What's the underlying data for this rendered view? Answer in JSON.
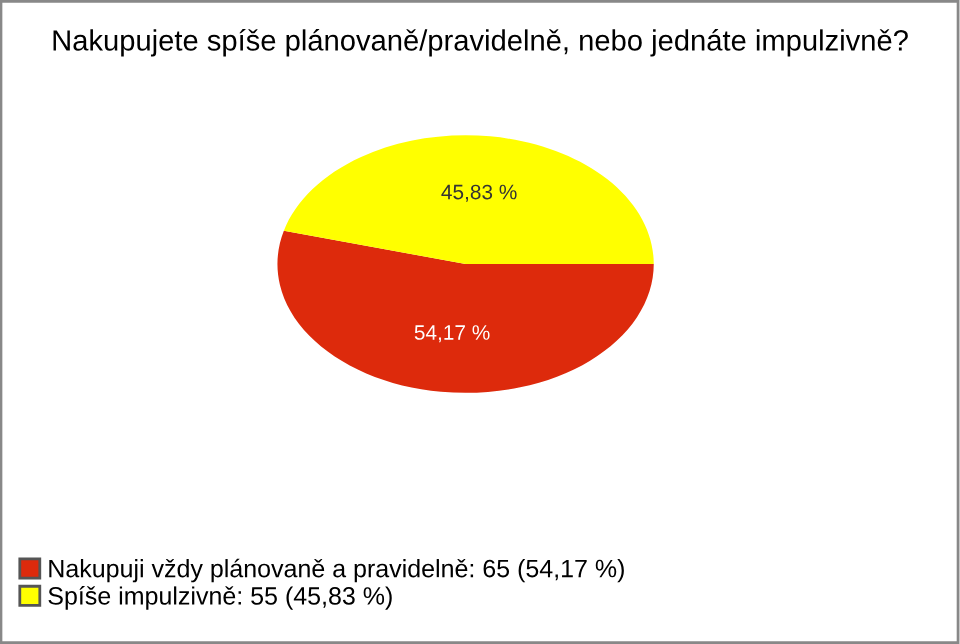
{
  "chart_data": {
    "type": "pie",
    "title": "Nakupujete spíše plánovaně/pravidelně, nebo jednáte impulzivně?",
    "categories": [
      "Nakupuji vždy plánovaně a pravidelně: 65 (54,17 %)",
      "Spíše impulzivně: 55 (45,83 %)"
    ],
    "values": [
      54.17,
      45.83
    ],
    "colors": [
      "#dd2a0c",
      "#ffff00"
    ],
    "value_labels": [
      "54,17 %",
      "45,83 %"
    ],
    "legend": "bottom left"
  }
}
